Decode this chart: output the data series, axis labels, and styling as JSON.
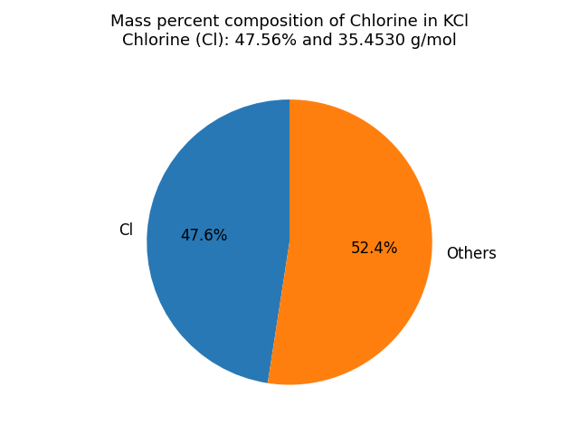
{
  "title_line1": "Mass percent composition of Chlorine in KCl",
  "title_line2": "Chlorine (Cl): 47.56% and 35.4530 g/mol",
  "slices": [
    47.56,
    52.44
  ],
  "labels": [
    "Cl",
    "Others"
  ],
  "colors": [
    "#2878b5",
    "#ff7f0e"
  ],
  "startangle": 90,
  "background_color": "#ffffff",
  "title_fontsize": 13,
  "label_fontsize": 12,
  "autopct_fontsize": 12
}
